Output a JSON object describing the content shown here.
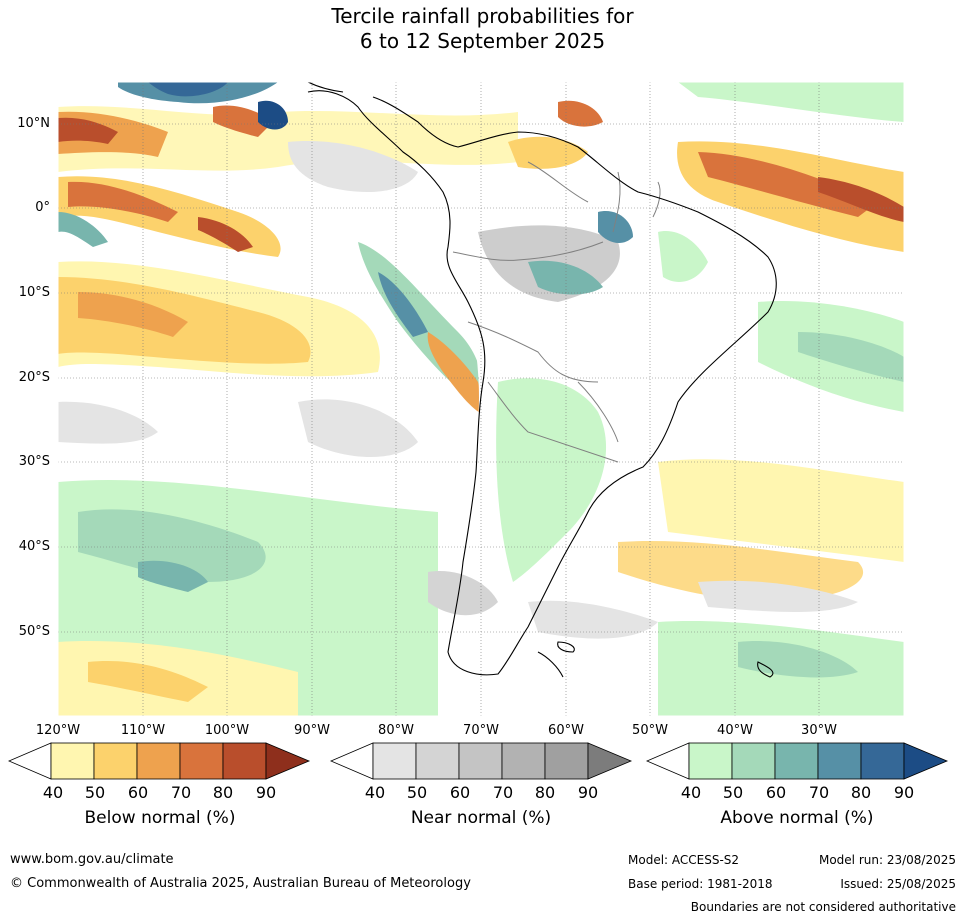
{
  "title_line1": "Tercile rainfall probabilities for",
  "title_line2": "6 to 12 September 2025",
  "lat_labels": [
    "10°N",
    "0°",
    "10°S",
    "20°S",
    "30°S",
    "40°S",
    "50°S"
  ],
  "lon_labels": [
    "120°W",
    "110°W",
    "100°W",
    "90°W",
    "80°W",
    "70°W",
    "60°W",
    "50°W",
    "40°W",
    "30°W"
  ],
  "colorbars": [
    {
      "label": "Below normal (%)",
      "ticks": [
        "40",
        "50",
        "60",
        "70",
        "80",
        "90"
      ],
      "colors": [
        "#fff6b0",
        "#fcd26c",
        "#eea24e",
        "#d9733c",
        "#b94e2c",
        "#8e2f1c"
      ]
    },
    {
      "label": "Near normal (%)",
      "ticks": [
        "40",
        "50",
        "60",
        "70",
        "80",
        "90"
      ],
      "colors": [
        "#e4e4e4",
        "#d4d4d4",
        "#c4c4c4",
        "#b2b2b2",
        "#a0a0a0",
        "#7c7c7c"
      ]
    },
    {
      "label": "Above normal (%)",
      "ticks": [
        "40",
        "50",
        "60",
        "70",
        "80",
        "90"
      ],
      "colors": [
        "#c9f6c9",
        "#a4d9b9",
        "#78b5ad",
        "#5690a6",
        "#356897",
        "#1c4c85"
      ]
    }
  ],
  "footer": {
    "website": "www.bom.gov.au/climate",
    "copyright": "© Commonwealth of Australia 2025, Australian Bureau of Meteorology",
    "model": "Model: ACCESS-S2",
    "base_period": "Base period: 1981-2018",
    "model_run": "Model run: 23/08/2025",
    "issued": "Issued: 25/08/2025",
    "boundaries": "Boundaries are not considered authoritative"
  }
}
